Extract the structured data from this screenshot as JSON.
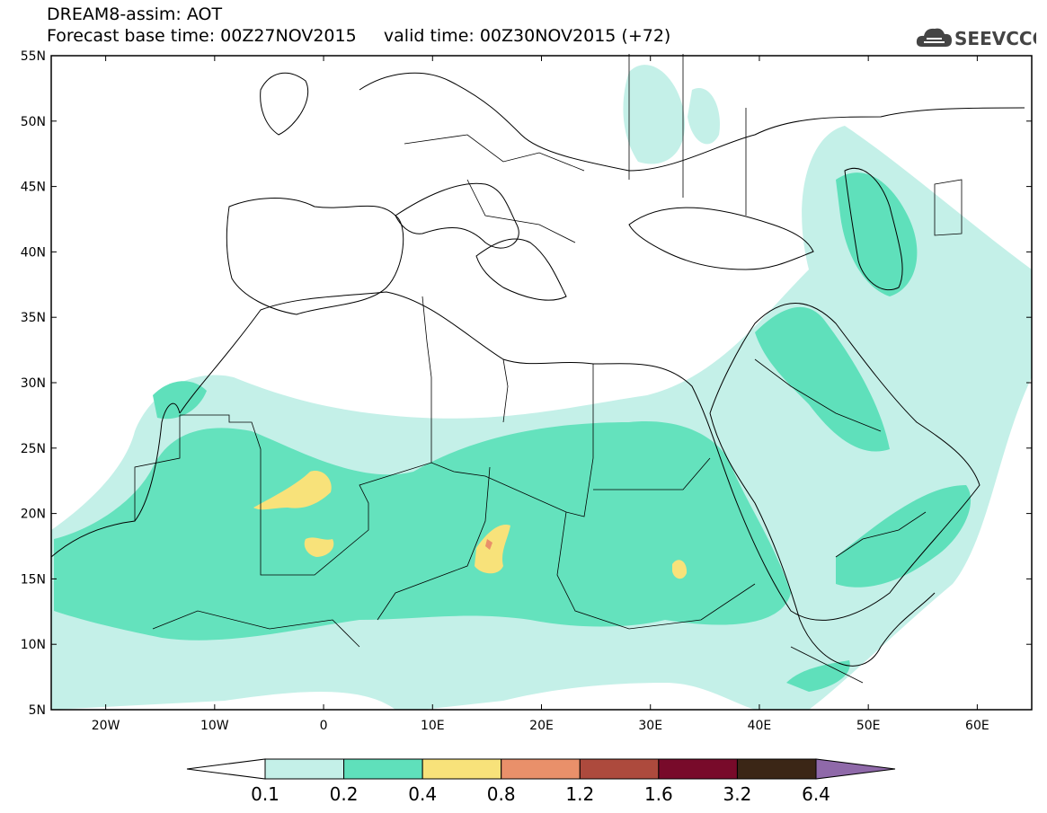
{
  "title_line1": "DREAM8-assim: AOT",
  "title_line2_base": "Forecast base time: 00Z27NOV2015",
  "title_line2_valid": "valid time: 00Z30NOV2015 (+72)",
  "logo_text": "SEEVCCC",
  "map": {
    "lat_labels": [
      "55N",
      "50N",
      "45N",
      "40N",
      "35N",
      "30N",
      "25N",
      "20N",
      "15N",
      "10N",
      "5N"
    ],
    "lon_labels": [
      "20W",
      "10W",
      "0",
      "10E",
      "20E",
      "30E",
      "40E",
      "50E",
      "60E"
    ],
    "lat_range": [
      5,
      55
    ],
    "lon_range": [
      -25,
      65
    ]
  },
  "colorbar": {
    "labels": [
      "0.1",
      "0.2",
      "0.4",
      "0.8",
      "1.2",
      "1.6",
      "3.2",
      "6.4"
    ],
    "colors": [
      "#c4f0e8",
      "#5fe0bb",
      "#f8e27a",
      "#e9906a",
      "#ad4a3d",
      "#780a2a",
      "#3b2616",
      "#8f69a9"
    ]
  }
}
